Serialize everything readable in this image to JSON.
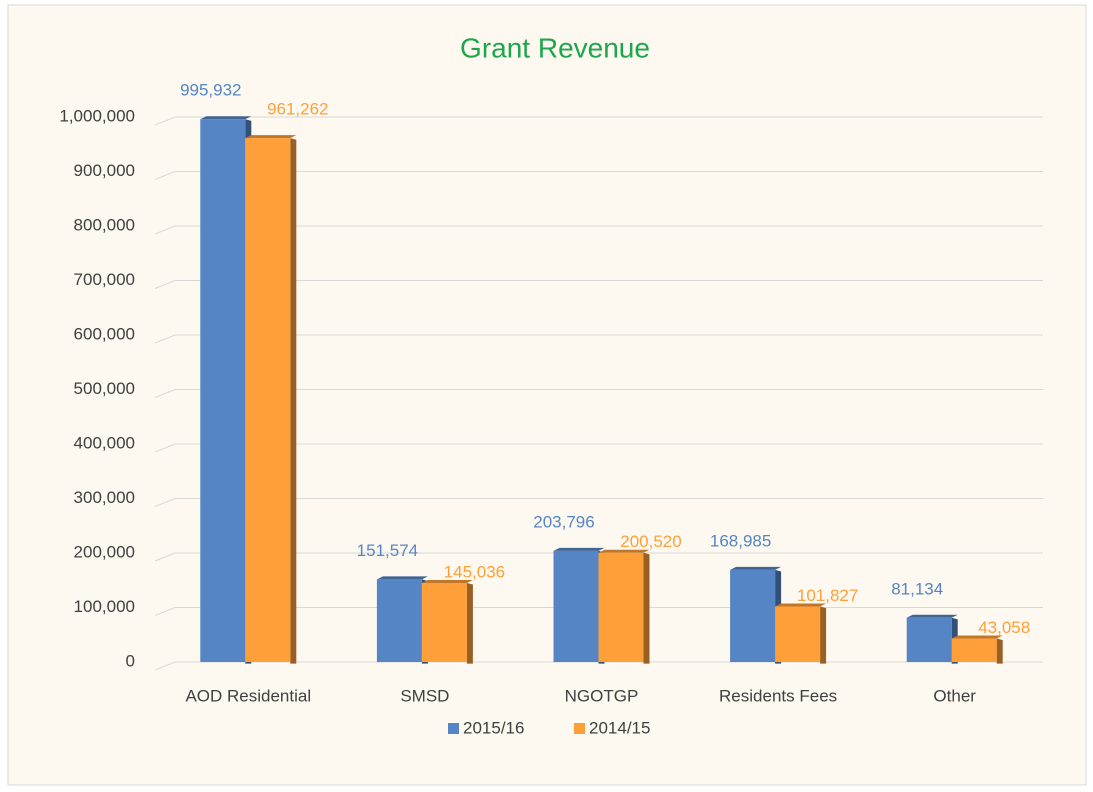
{
  "chart_data": {
    "type": "bar",
    "title": "Grant Revenue",
    "categories": [
      "AOD Residential",
      "SMSD",
      "NGOTGP",
      "Residents Fees",
      "Other"
    ],
    "series": [
      {
        "name": "2015/16",
        "color": "#5585c5",
        "values": [
          995932,
          151574,
          203796,
          168985,
          81134
        ],
        "value_labels": [
          "995,932",
          "151,574",
          "203,796",
          "168,985",
          "81,134"
        ]
      },
      {
        "name": "2014/15",
        "color": "#ff9f3a",
        "values": [
          961262,
          145036,
          200520,
          101827,
          43058
        ],
        "value_labels": [
          "961,262",
          "145,036",
          "200,520",
          "101,827",
          "43,058"
        ]
      }
    ],
    "ylim": [
      0,
      1000000
    ],
    "yticks": [
      0,
      {
        "value": 100000,
        "label": "100,000"
      },
      {
        "value": 200000,
        "label": "200,000"
      },
      {
        "value": 300000,
        "label": "300,000"
      },
      {
        "value": 400000,
        "label": "400,000"
      },
      {
        "value": 500000,
        "label": "500,000"
      },
      {
        "value": 600000,
        "label": "600,000"
      },
      {
        "value": 700000,
        "label": "700,000"
      },
      {
        "value": 800000,
        "label": "800,000"
      },
      {
        "value": 900000,
        "label": "900,000"
      },
      {
        "value": 1000000,
        "label": "1,000,000"
      }
    ],
    "grid": true,
    "legend": "bottom"
  }
}
